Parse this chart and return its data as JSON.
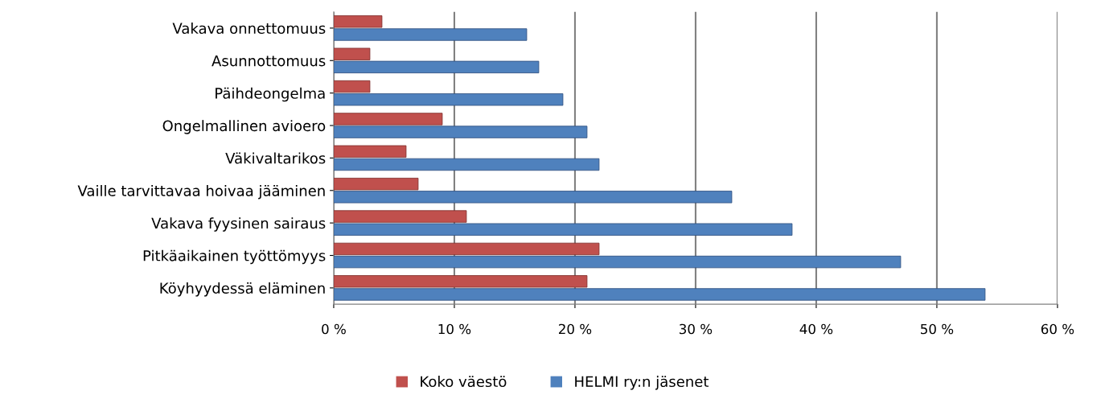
{
  "chart_data": {
    "type": "bar",
    "orientation": "horizontal",
    "categories": [
      "Vakava onnettomuus",
      "Asunnottomuus",
      "Päihdeongelma",
      "Ongelmallinen avioero",
      "Väkivaltarikos",
      "Vaille tarvittavaa hoivaa jääminen",
      "Vakava fyysinen sairaus",
      "Pitkäaikainen työttömyys",
      "Köyhyydessä eläminen"
    ],
    "series": [
      {
        "name": "Koko väestö",
        "color": "#c0504d",
        "values": [
          4,
          3,
          3,
          9,
          6,
          7,
          11,
          22,
          21
        ]
      },
      {
        "name": "HELMI ry:n jäsenet",
        "color": "#4f81bd",
        "values": [
          16,
          17,
          19,
          21,
          22,
          33,
          38,
          47,
          54
        ]
      }
    ],
    "xlim": [
      0,
      60
    ],
    "xticks": [
      {
        "value": 0,
        "label": "0 %"
      },
      {
        "value": 10,
        "label": "10 %"
      },
      {
        "value": 20,
        "label": "20 %"
      },
      {
        "value": 30,
        "label": "30 %"
      },
      {
        "value": 40,
        "label": "40 %"
      },
      {
        "value": 50,
        "label": "50 %"
      },
      {
        "value": 60,
        "label": "60 %"
      }
    ],
    "grid": "x",
    "legend": "bottom"
  }
}
